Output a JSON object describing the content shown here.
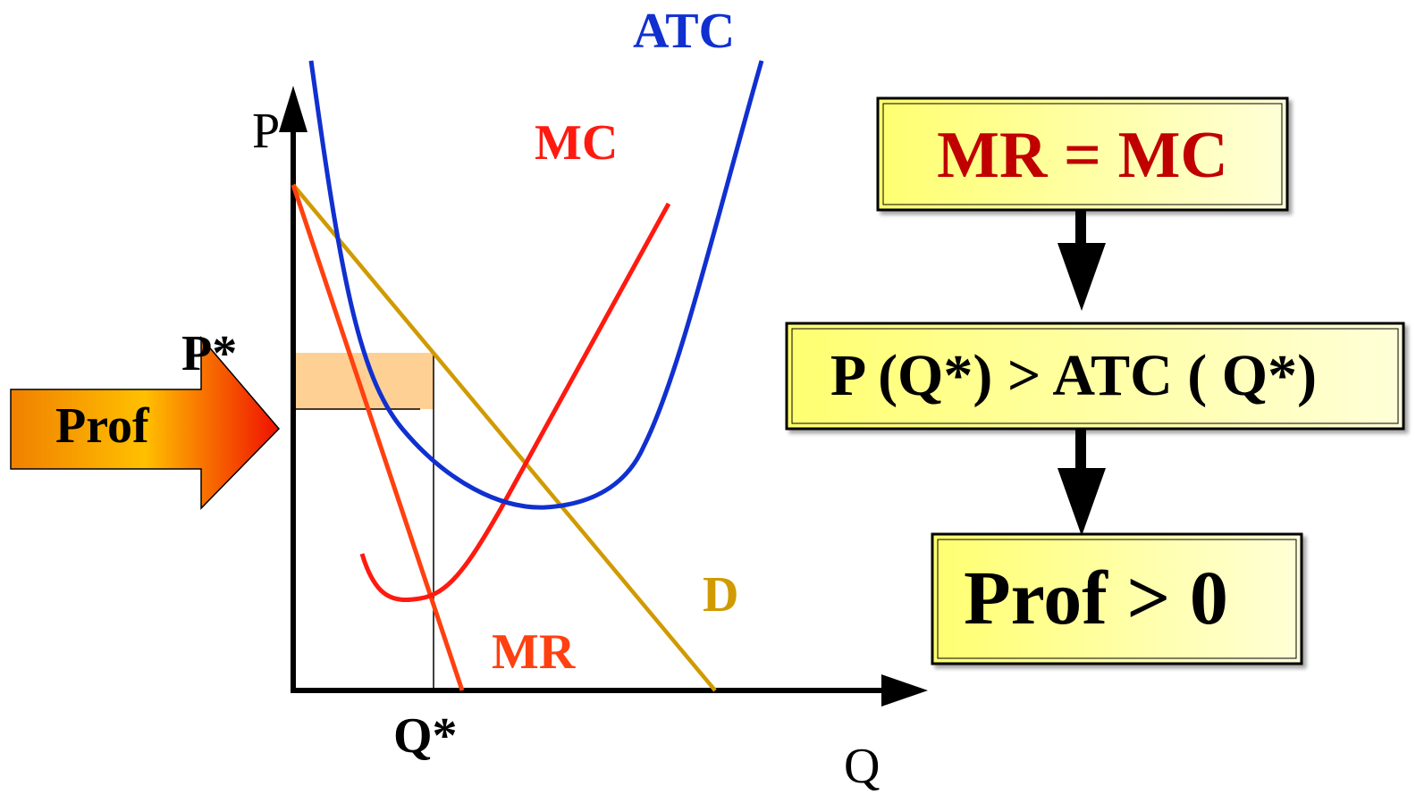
{
  "diagram": {
    "axes": {
      "y_label": "P",
      "x_label": "Q"
    },
    "markers": {
      "price_label": "P*",
      "quantity_label": "Q*"
    },
    "curves": [
      {
        "label": "ATC",
        "color": "#1030d0"
      },
      {
        "label": "MC",
        "color": "#ff1a10"
      },
      {
        "label": "MR",
        "color": "#ff4010"
      },
      {
        "label": "D",
        "color": "#d09a00"
      }
    ],
    "profit_area_color": "#ffc880",
    "profit_arrow": {
      "label": "Prof",
      "icon": "block-arrow-right-icon"
    }
  },
  "flow": {
    "boxes": [
      {
        "text": "MR = MC",
        "text_color": "#c00000"
      },
      {
        "text": "P (Q*) > ATC ( Q*)",
        "text_color": "#000000"
      },
      {
        "text": "Prof > 0",
        "text_color": "#000000"
      }
    ],
    "box_fill": "#ffffa0",
    "connector_icon": "down-arrow-icon"
  }
}
